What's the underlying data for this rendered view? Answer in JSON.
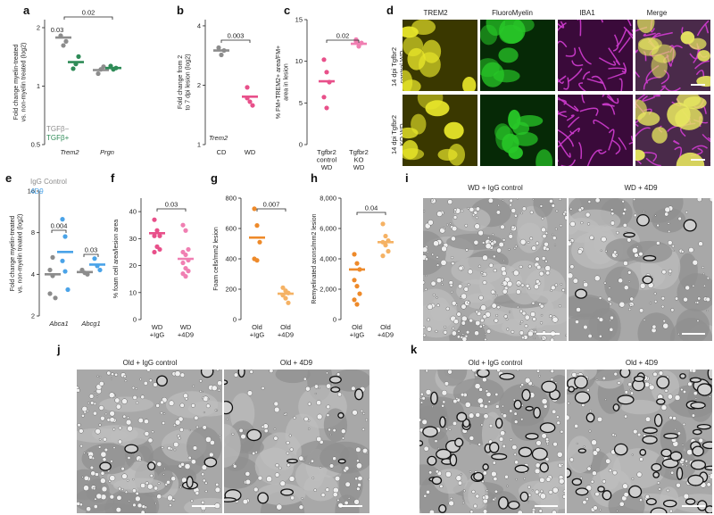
{
  "panels": {
    "a": {
      "label": "a"
    },
    "b": {
      "label": "b"
    },
    "c": {
      "label": "c"
    },
    "d": {
      "label": "d"
    },
    "e": {
      "label": "e"
    },
    "f": {
      "label": "f"
    },
    "g": {
      "label": "g"
    },
    "h": {
      "label": "h"
    },
    "i": {
      "label": "i"
    },
    "j": {
      "label": "j"
    },
    "k": {
      "label": "k"
    }
  },
  "panel_d": {
    "columns": [
      "TREM2",
      "FluoroMyelin",
      "IBA1",
      "Merge"
    ],
    "rows": [
      "14 dpi Tgfbr2\ncontrol WD",
      "14 dpi Tgfbr2\nKO WD"
    ]
  },
  "panel_i": {
    "left": "WD + IgG control",
    "right": "WD + 4D9"
  },
  "panel_j": {
    "left": "Old + IgG control",
    "right": "Old + 4D9"
  },
  "panel_k": {
    "left": "Old + IgG control",
    "right": "Old + 4D9"
  },
  "colors": {
    "gray": "#8c8c8c",
    "green": "#2e8b57",
    "pink": "#e8508a",
    "pink_light": "#f07fb2",
    "blue": "#4aa3e8",
    "orange": "#ee8a2a",
    "orange_light": "#f5b264",
    "em_bg": "#a7a7a7",
    "yellow": "#e8e62a",
    "fm_green": "#28c828",
    "magenta": "#d23cd2"
  },
  "chart_data": [
    {
      "id": "a",
      "type": "scatter",
      "ylabel": "Fold change myelin-treated\nvs. non-myelin treated (log2)",
      "categories": [
        "Trem2",
        "Prgn"
      ],
      "yscale": "log2",
      "ylim": [
        0.5,
        2.2
      ],
      "yticks": [
        {
          "v": 0.5,
          "t": "0.5"
        },
        {
          "v": 1,
          "t": "1"
        },
        {
          "v": 2,
          "t": "2"
        }
      ],
      "series": [
        {
          "name": "TGFβ−",
          "color": "#8c8c8c",
          "points": [
            [
              0,
              1.82
            ],
            [
              0,
              1.62
            ],
            [
              0,
              1.7
            ],
            [
              1,
              1.16
            ],
            [
              1,
              1.22
            ],
            [
              1,
              1.26
            ]
          ],
          "means": [
            [
              0,
              1.78
            ],
            [
              1,
              1.21
            ]
          ]
        },
        {
          "name": "TGFβ+",
          "color": "#2e8b57",
          "points": [
            [
              0,
              1.23
            ],
            [
              0,
              1.3
            ],
            [
              0,
              1.42
            ],
            [
              1,
              1.27
            ],
            [
              1,
              1.22
            ],
            [
              1,
              1.24
            ]
          ],
          "means": [
            [
              0,
              1.33
            ],
            [
              1,
              1.24
            ]
          ]
        }
      ],
      "annotations": [
        "0.02",
        "0.03"
      ]
    },
    {
      "id": "b",
      "type": "scatter",
      "ylabel": "Fold change from 2\nto 7 dpi lesion (log2)",
      "inner_label": "Trem2",
      "categories": [
        "CD",
        "WD"
      ],
      "yscale": "log2",
      "ylim": [
        1,
        4.3
      ],
      "yticks": [
        {
          "v": 1,
          "t": "1"
        },
        {
          "v": 2,
          "t": "2"
        },
        {
          "v": 4,
          "t": "4"
        }
      ],
      "series": [
        {
          "name": "CD",
          "color": "#8c8c8c",
          "points": [
            [
              0,
              3.1
            ],
            [
              0,
              2.85
            ],
            [
              0,
              3.0
            ]
          ],
          "means": [
            [
              0,
              3.0
            ]
          ]
        },
        {
          "name": "WD",
          "color": "#e8508a",
          "points": [
            [
              1,
              1.95
            ],
            [
              1,
              1.65
            ],
            [
              1,
              1.58
            ],
            [
              1,
              1.72
            ]
          ],
          "means": [
            [
              1,
              1.75
            ]
          ]
        }
      ],
      "annotations": [
        "0.003"
      ]
    },
    {
      "id": "c",
      "type": "scatter",
      "ylabel": "% FM+TREM2+ area/FM+\narea in lesion",
      "categories": [
        "Tgfbr2\ncontrol\nWD",
        "Tgfbr2\nKO\nWD"
      ],
      "ylim": [
        0,
        15
      ],
      "yticks": [
        {
          "v": 0,
          "t": "0"
        },
        {
          "v": 5,
          "t": "5"
        },
        {
          "v": 10,
          "t": "10"
        },
        {
          "v": 15,
          "t": "15"
        }
      ],
      "series": [
        {
          "name": "control",
          "color": "#e8508a",
          "points": [
            [
              0,
              10.2
            ],
            [
              0,
              8.7
            ],
            [
              0,
              7.5
            ],
            [
              0,
              5.7
            ],
            [
              0,
              4.4
            ]
          ],
          "means": [
            [
              0,
              7.6
            ]
          ]
        },
        {
          "name": "KO",
          "color": "#f07fb2",
          "points": [
            [
              1,
              12.6
            ],
            [
              1,
              11.8
            ],
            [
              1,
              12.2
            ],
            [
              1,
              12.4
            ]
          ],
          "means": [
            [
              1,
              12.1
            ]
          ]
        }
      ],
      "annotations": [
        "0.02"
      ]
    },
    {
      "id": "e",
      "type": "scatter",
      "ylabel": "Fold change myelin-treated\nvs. non-myelin treated (log2)",
      "categories": [
        "Abca1",
        "Abcg1"
      ],
      "yscale": "log2",
      "ylim": [
        2,
        16
      ],
      "yticks": [
        {
          "v": 2,
          "t": "2"
        },
        {
          "v": 4,
          "t": "4"
        },
        {
          "v": 8,
          "t": "8"
        },
        {
          "v": 16,
          "t": "16"
        }
      ],
      "series": [
        {
          "name": "IgG Control",
          "color": "#8c8c8c",
          "points": [
            [
              0,
              4.3
            ],
            [
              0,
              3.9
            ],
            [
              0,
              2.7
            ],
            [
              0,
              2.9
            ],
            [
              0,
              5.3
            ],
            [
              1,
              4.0
            ],
            [
              1,
              4.3
            ],
            [
              1,
              4.1
            ]
          ],
          "means": [
            [
              0,
              4.0
            ],
            [
              1,
              4.15
            ]
          ]
        },
        {
          "name": "4D9",
          "color": "#4aa3e8",
          "points": [
            [
              0,
              10.0
            ],
            [
              0,
              7.5
            ],
            [
              0,
              3.1
            ],
            [
              0,
              5.0
            ],
            [
              0,
              4.2
            ],
            [
              1,
              4.3
            ],
            [
              1,
              5.2
            ],
            [
              1,
              4.6
            ]
          ],
          "means": [
            [
              0,
              5.8
            ],
            [
              1,
              4.7
            ]
          ]
        }
      ],
      "annotations": [
        "0.004",
        "0.03"
      ]
    },
    {
      "id": "f",
      "type": "scatter",
      "ylabel": "% foam cell area/lesion area",
      "categories": [
        "WD\n+IgG",
        "WD\n+4D9"
      ],
      "ylim": [
        0,
        45
      ],
      "yticks": [
        {
          "v": 0,
          "t": "0"
        },
        {
          "v": 10,
          "t": "10"
        },
        {
          "v": 20,
          "t": "20"
        },
        {
          "v": 30,
          "t": "30"
        },
        {
          "v": 40,
          "t": "40"
        }
      ],
      "series": [
        {
          "name": "WD+IgG",
          "color": "#e8508a",
          "points": [
            [
              0,
              37
            ],
            [
              0,
              33
            ],
            [
              0,
              31
            ],
            [
              0,
              31
            ],
            [
              0,
              27
            ],
            [
              0,
              26
            ],
            [
              0,
              25
            ]
          ],
          "means": [
            [
              0,
              32
            ]
          ]
        },
        {
          "name": "WD+4D9",
          "color": "#f07fb2",
          "points": [
            [
              1,
              35
            ],
            [
              1,
              33
            ],
            [
              1,
              26
            ],
            [
              1,
              25
            ],
            [
              1,
              24
            ],
            [
              1,
              22
            ],
            [
              1,
              21
            ],
            [
              1,
              19
            ],
            [
              1,
              18
            ],
            [
              1,
              17
            ],
            [
              1,
              16
            ]
          ],
          "means": [
            [
              1,
              22.5
            ]
          ]
        }
      ],
      "annotations": [
        "0.03"
      ]
    },
    {
      "id": "g",
      "type": "scatter",
      "ylabel": "Foam cells/mm2 lesion",
      "categories": [
        "Old\n+IgG",
        "Old\n+4D9"
      ],
      "ylim": [
        0,
        800
      ],
      "yticks": [
        {
          "v": 0,
          "t": "0"
        },
        {
          "v": 200,
          "t": "200"
        },
        {
          "v": 400,
          "t": "400"
        },
        {
          "v": 600,
          "t": "600"
        },
        {
          "v": 800,
          "t": "800"
        }
      ],
      "series": [
        {
          "name": "Old+IgG",
          "color": "#ee8a2a",
          "points": [
            [
              0,
              730
            ],
            [
              0,
              620
            ],
            [
              0,
              510
            ],
            [
              0,
              400
            ],
            [
              0,
              390
            ]
          ],
          "means": [
            [
              0,
              540
            ]
          ]
        },
        {
          "name": "Old+4D9",
          "color": "#f5b264",
          "points": [
            [
              1,
              210
            ],
            [
              1,
              190
            ],
            [
              1,
              175
            ],
            [
              1,
              160
            ],
            [
              1,
              140
            ],
            [
              1,
              110
            ]
          ],
          "means": [
            [
              1,
              170
            ]
          ]
        }
      ],
      "annotations": [
        "0.007"
      ]
    },
    {
      "id": "h",
      "type": "scatter",
      "ylabel": "Remyelinated axons/mm2 lesion",
      "categories": [
        "Old\n+IgG",
        "Old\n+4D9"
      ],
      "ylim": [
        0,
        8000
      ],
      "yticks": [
        {
          "v": 0,
          "t": "0"
        },
        {
          "v": 2000,
          "t": "2,000"
        },
        {
          "v": 4000,
          "t": "4,000"
        },
        {
          "v": 6000,
          "t": "6,000"
        },
        {
          "v": 8000,
          "t": "8,000"
        }
      ],
      "series": [
        {
          "name": "Old+IgG",
          "color": "#ee8a2a",
          "points": [
            [
              0,
              4300
            ],
            [
              0,
              3700
            ],
            [
              0,
              3300
            ],
            [
              0,
              2600
            ],
            [
              0,
              2200
            ],
            [
              0,
              1700
            ],
            [
              0,
              1300
            ],
            [
              0,
              1000
            ]
          ],
          "means": [
            [
              0,
              3300
            ]
          ]
        },
        {
          "name": "Old+4D9",
          "color": "#f5b264",
          "points": [
            [
              1,
              6300
            ],
            [
              1,
              5500
            ],
            [
              1,
              5200
            ],
            [
              1,
              5100
            ],
            [
              1,
              4900
            ],
            [
              1,
              4500
            ],
            [
              1,
              4200
            ]
          ],
          "means": [
            [
              1,
              5100
            ]
          ]
        }
      ],
      "annotations": [
        "0.04"
      ]
    }
  ]
}
